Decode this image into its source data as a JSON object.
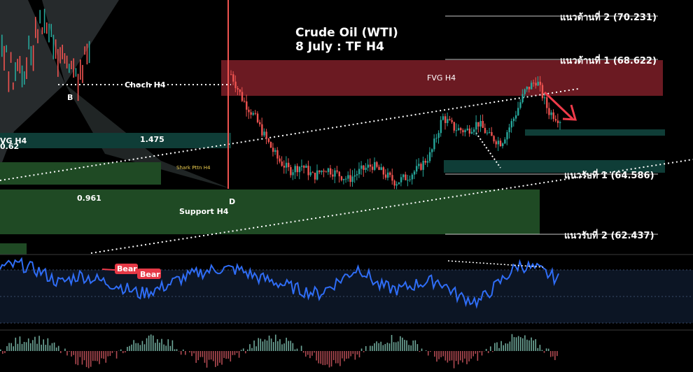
{
  "title": {
    "line1": "Crude Oil (WTI)",
    "line2": "8 July : TF H4"
  },
  "levels": {
    "resistance2": "แนวต้านที่ 2 (70.231)",
    "resistance1": "แนวต้านที่ 1 (68.622)",
    "support1": "แนวรับที่ 1 (64.586)",
    "support2": "แนวรับที่ 2 (62.437)"
  },
  "zones": {
    "fvg_top": "FVG H4",
    "fvg_left": "VG H4",
    "support": "Support H4",
    "shark": "Shark Pttn H4"
  },
  "annotations": {
    "choch": "Choch H4",
    "point_b": "B",
    "point_d": "D",
    "ratio1": "1.475",
    "ratio2": "0.961",
    "edge_value": "0.62"
  },
  "rsi_tags": {
    "bear1": "Bear",
    "bear2": "Bear"
  },
  "colors": {
    "fvg": "#6b1a22",
    "teal": "#0f3d37",
    "support": "#1f4a24",
    "shark": "#2e2e2e",
    "bull": "#26a69a",
    "bear": "#ef5350",
    "rsi": "#2f6df6",
    "bear_tag": "#e63946"
  },
  "chart_data": {
    "type": "line",
    "series": [
      {
        "values": [
          68.1,
          67.2,
          66.6,
          65.8,
          65.1,
          64.7,
          64.9,
          64.5,
          64.8,
          64.6,
          64.4,
          64.7,
          64.9,
          64.6,
          64.3,
          64.5,
          64.8,
          65.3,
          66.6,
          66.2,
          66.1,
          66.4,
          65.9,
          65.7,
          66.5,
          67.5,
          67.9,
          66.8,
          66.5
        ]
      },
      {
        "values": [
          72,
          74,
          69,
          60,
          66,
          62,
          58,
          52,
          56,
          63,
          68,
          71,
          70,
          64,
          60,
          55,
          52,
          62,
          72,
          58,
          55,
          60,
          62,
          50,
          46,
          60,
          74,
          70,
          63
        ]
      }
    ]
  }
}
